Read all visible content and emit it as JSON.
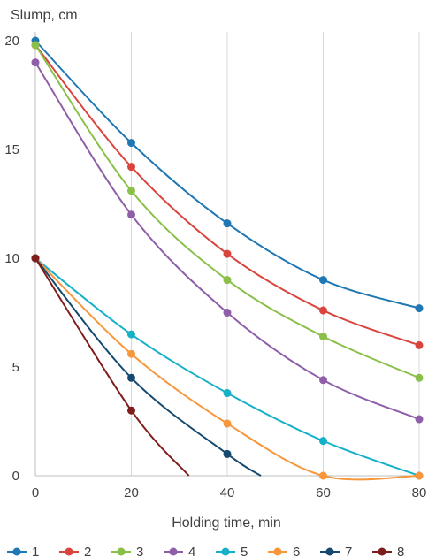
{
  "chart_data": {
    "type": "line",
    "title": "",
    "xlabel": "Holding time, min",
    "ylabel": "Slump, cm",
    "xlim": [
      0,
      80
    ],
    "ylim": [
      0,
      20
    ],
    "x_ticks": [
      0,
      20,
      40,
      60,
      80
    ],
    "y_ticks": [
      0,
      5,
      10,
      15,
      20
    ],
    "grid": "vertical",
    "legend_position": "bottom",
    "series": [
      {
        "name": "1",
        "color": "#1f77b4",
        "x": [
          0,
          20,
          40,
          60,
          80
        ],
        "y": [
          20,
          15.3,
          11.6,
          9.0,
          7.7
        ],
        "curve_end": null
      },
      {
        "name": "2",
        "color": "#d9453d",
        "x": [
          0,
          20,
          40,
          60,
          80
        ],
        "y": [
          19.8,
          14.2,
          10.2,
          7.6,
          6.0
        ],
        "curve_end": null
      },
      {
        "name": "3",
        "color": "#8ac04a",
        "x": [
          0,
          20,
          40,
          60,
          80
        ],
        "y": [
          19.8,
          13.1,
          9.0,
          6.4,
          4.5
        ],
        "curve_end": null
      },
      {
        "name": "4",
        "color": "#8e5ea8",
        "x": [
          0,
          20,
          40,
          60,
          80
        ],
        "y": [
          19.0,
          12.0,
          7.5,
          4.4,
          2.6
        ],
        "curve_end": null
      },
      {
        "name": "5",
        "color": "#17b0c9",
        "x": [
          0,
          20,
          40,
          60,
          80
        ],
        "y": [
          10,
          6.5,
          3.8,
          1.6,
          0
        ],
        "curve_end": null
      },
      {
        "name": "6",
        "color": "#f7963b",
        "x": [
          0,
          20,
          40,
          60,
          80
        ],
        "y": [
          10,
          5.6,
          2.4,
          0,
          0
        ],
        "curve_end": null
      },
      {
        "name": "7",
        "color": "#15496e",
        "x": [
          0,
          20,
          40
        ],
        "y": [
          10,
          4.5,
          1.0
        ],
        "curve_end": [
          47,
          0
        ]
      },
      {
        "name": "8",
        "color": "#7f1d1d",
        "x": [
          0,
          20
        ],
        "y": [
          10,
          3.0
        ],
        "curve_end": [
          32,
          0
        ]
      }
    ]
  }
}
